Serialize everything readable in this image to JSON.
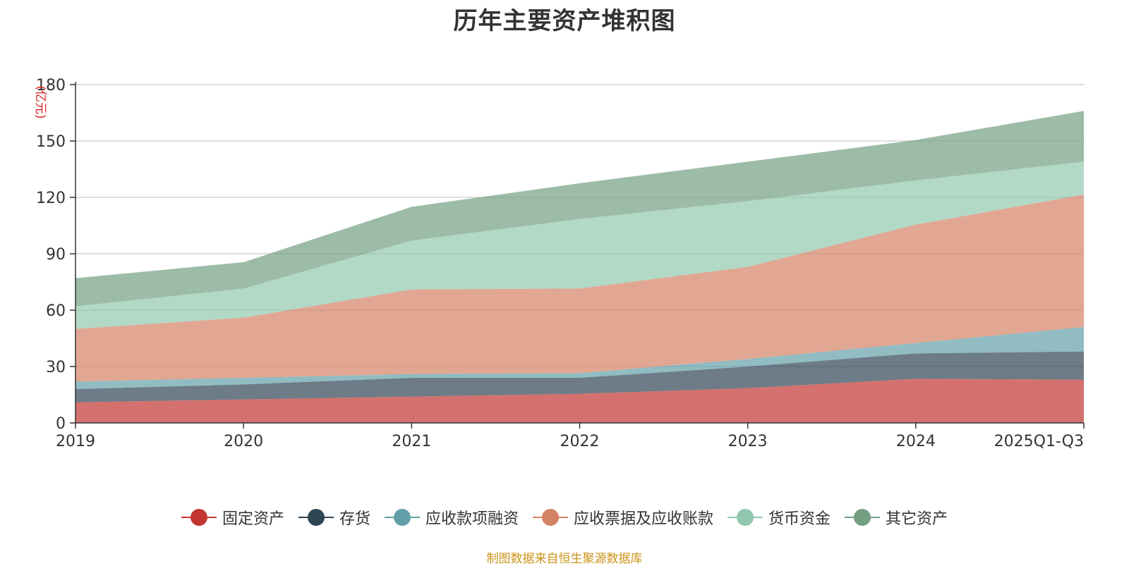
{
  "chart_data": {
    "type": "area",
    "stacked": true,
    "title": "历年主要资产堆积图",
    "ylabel": "(亿元)",
    "xlabel": "",
    "ylim": [
      0,
      180
    ],
    "yticks": [
      0,
      30,
      60,
      90,
      120,
      150,
      180
    ],
    "categories": [
      "2019",
      "2020",
      "2021",
      "2022",
      "2023",
      "2024",
      "2025Q1-Q3"
    ],
    "grid": true,
    "legend_position": "bottom",
    "series": [
      {
        "name": "固定资产",
        "color": "#c23531",
        "values": [
          11,
          12.5,
          14,
          15.5,
          18.5,
          23.5,
          23
        ]
      },
      {
        "name": "存货",
        "color": "#2f4554",
        "values": [
          7,
          8,
          10,
          8.5,
          11.5,
          13.5,
          15
        ]
      },
      {
        "name": "应收款项融资",
        "color": "#61a0a8",
        "values": [
          4,
          3.5,
          2,
          2.5,
          4,
          5.5,
          13
        ]
      },
      {
        "name": "应收票据及应收账款",
        "color": "#d48265",
        "values": [
          28,
          32,
          45,
          45,
          49,
          63,
          70.5
        ]
      },
      {
        "name": "货币资金",
        "color": "#91c7ae",
        "values": [
          12,
          15.5,
          26,
          37,
          35,
          23.5,
          17.5
        ]
      },
      {
        "name": "其它资产",
        "color": "#749f83",
        "values": [
          15,
          14,
          18,
          19,
          21,
          21.5,
          27
        ]
      }
    ]
  },
  "footer": {
    "source": "制图数据来自恒生聚源数据库"
  }
}
